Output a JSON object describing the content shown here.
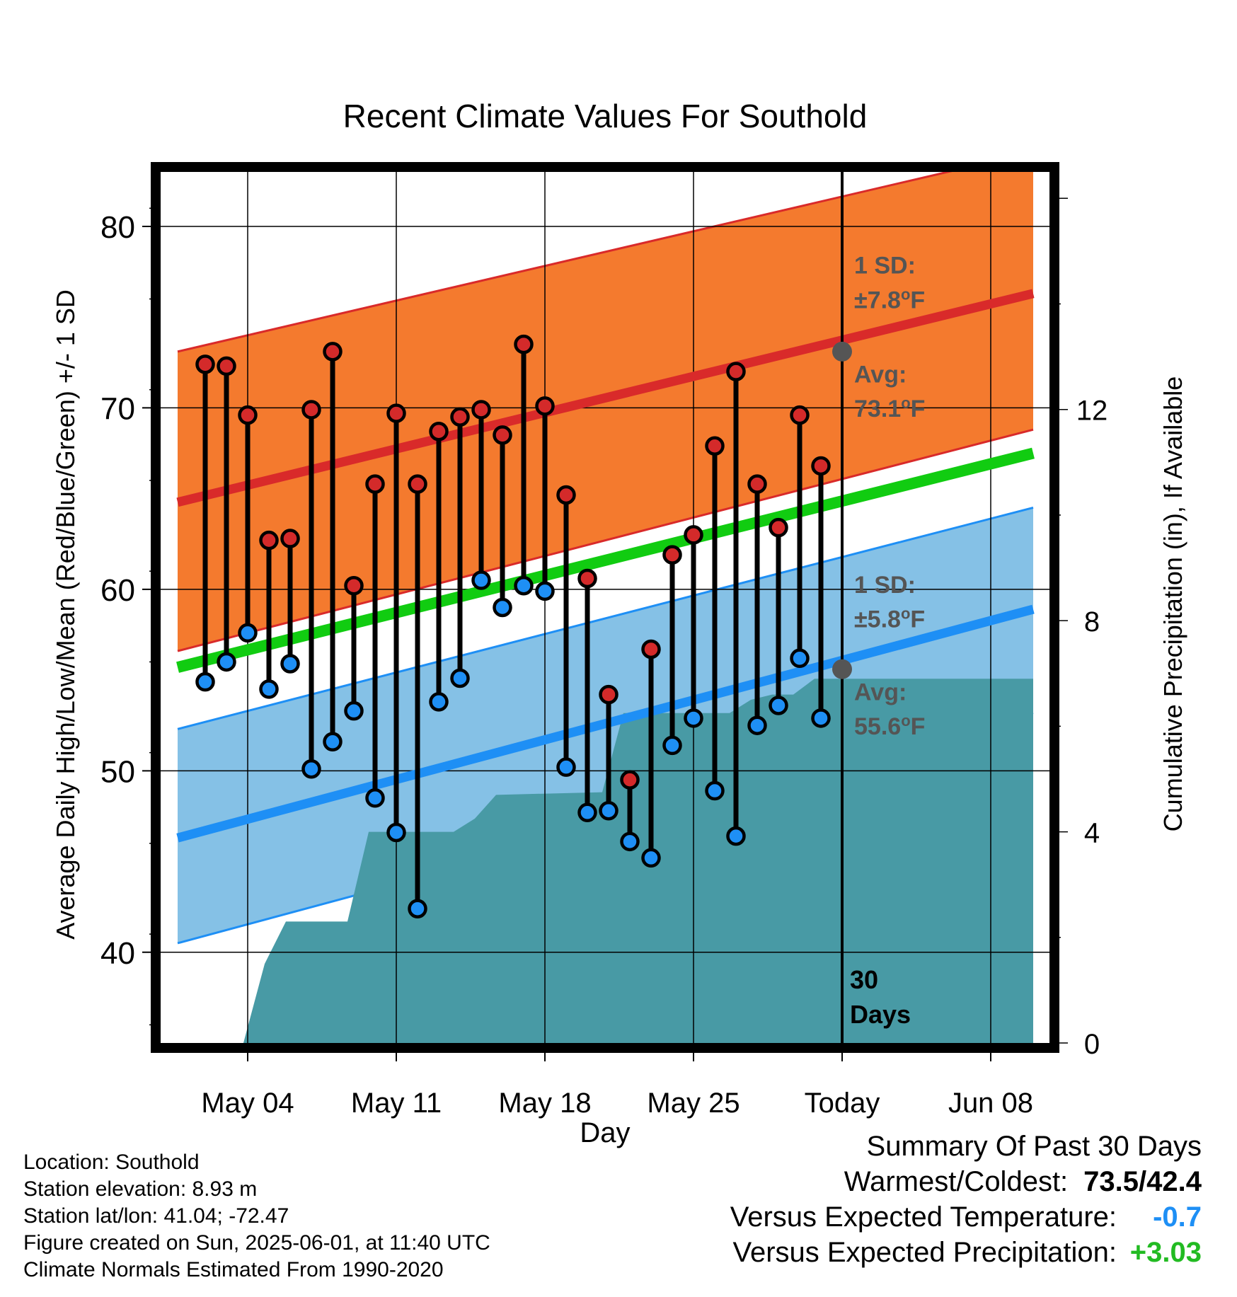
{
  "chart_data": {
    "type": "line",
    "title": "Recent Climate Values For Southold",
    "xlabel": "Day",
    "ylabel_left": "Average Daily High/Low/Mean (Red/Blue/Green) +/- 1 SD",
    "ylabel_right": "Cumulative Precipitation (in), If Available",
    "ylim_left": [
      35,
      83
    ],
    "ylim_right": [
      0,
      16.5
    ],
    "x_tick_labels": [
      "May 04",
      "May 11",
      "May 18",
      "May 25",
      "Today",
      "Jun 08"
    ],
    "x_tick_days": [
      4,
      11,
      18,
      25,
      32,
      39
    ],
    "xlim_days": [
      0.7,
      41
    ],
    "y_left_ticks": [
      40,
      50,
      60,
      70,
      80
    ],
    "y_right_ticks": [
      0,
      4,
      8,
      12
    ],
    "today_day": 32,
    "today_label": "30\nDays",
    "daily": {
      "days": [
        2,
        3,
        4,
        5,
        6,
        7,
        8,
        9,
        10,
        11,
        12,
        13,
        14,
        15,
        16,
        17,
        18,
        19,
        20,
        21,
        22,
        23,
        24,
        25,
        26,
        27,
        28,
        29,
        30,
        31
      ],
      "high": [
        72.4,
        72.3,
        69.6,
        62.7,
        62.8,
        69.9,
        73.1,
        60.2,
        65.8,
        69.7,
        65.8,
        68.7,
        69.5,
        69.9,
        68.5,
        73.5,
        70.1,
        65.2,
        60.6,
        54.2,
        49.5,
        56.7,
        61.9,
        63.0,
        67.9,
        72.0,
        65.8,
        63.4,
        69.6,
        66.8
      ],
      "low": [
        54.9,
        56.0,
        57.6,
        54.5,
        55.9,
        50.1,
        51.6,
        53.3,
        48.5,
        46.6,
        42.4,
        53.8,
        55.1,
        60.5,
        59.0,
        60.2,
        59.9,
        50.2,
        47.7,
        47.8,
        46.1,
        45.2,
        51.4,
        52.9,
        48.9,
        46.4,
        52.5,
        53.6,
        56.2,
        52.9
      ]
    },
    "normals": {
      "days": [
        0.7,
        41
      ],
      "avg_high": [
        64.8,
        76.3
      ],
      "high_upper": [
        73.1,
        84.1
      ],
      "high_lower": [
        56.6,
        68.8
      ],
      "avg_mean": [
        55.7,
        67.5
      ],
      "avg_low": [
        46.3,
        58.9
      ],
      "low_upper": [
        52.3,
        64.5
      ],
      "low_lower": [
        40.5,
        53.2
      ]
    },
    "precip_cumulative": {
      "days": [
        0.7,
        3.8,
        4.8,
        5.8,
        8.7,
        9.7,
        10.7,
        11.7,
        12.7,
        13.7,
        14.7,
        15.7,
        20.7,
        21.7,
        22.7,
        26.7,
        27.7,
        28.7,
        29.7,
        30.7,
        31.7,
        41
      ],
      "values": [
        0,
        0,
        1.5,
        2.3,
        2.3,
        4.0,
        4.0,
        4.0,
        4.0,
        4.0,
        4.25,
        4.7,
        4.75,
        6.25,
        6.25,
        6.25,
        6.5,
        6.6,
        6.6,
        6.9,
        6.9,
        6.9
      ]
    },
    "annotations": {
      "high_sd_label": "1 SD:",
      "high_sd_value": "±7.8°F",
      "high_avg_label": "Avg:",
      "high_avg_value": "73.1°F",
      "high_avg_today": 73.1,
      "low_sd_label": "1 SD:",
      "low_sd_value": "±5.8°F",
      "low_avg_label": "Avg:",
      "low_avg_value": "55.6°F",
      "low_avg_today": 55.6
    },
    "colors": {
      "high_band": "#f47a2e",
      "high_edge": "#d92a2a",
      "low_band": "#85c1e6",
      "low_edge": "#1e8ff5",
      "mean_line": "#11cc11",
      "precip": "#489aa5",
      "high_dot": "#d42a2a",
      "low_dot": "#1e8ff5",
      "annotation": "#555555"
    }
  },
  "info": {
    "location": "Location: Southold",
    "elevation": "Station elevation: 8.93 m",
    "latlon": "Station lat/lon: 41.04; -72.47",
    "created": "Figure created on Sun, 2025-06-01, at 11:40 UTC",
    "normals": "Climate Normals Estimated From 1990-2020"
  },
  "summary": {
    "heading": "Summary Of Past 30 Days",
    "warm_cold_label": "Warmest/Coldest:",
    "warm_cold_value": "73.5/42.4",
    "temp_label": "Versus Expected Temperature:",
    "temp_value": "-0.7",
    "temp_color": "#1e8ff5",
    "precip_label": "Versus Expected Precipitation:",
    "precip_value": "+3.03",
    "precip_color": "#22bb22"
  }
}
